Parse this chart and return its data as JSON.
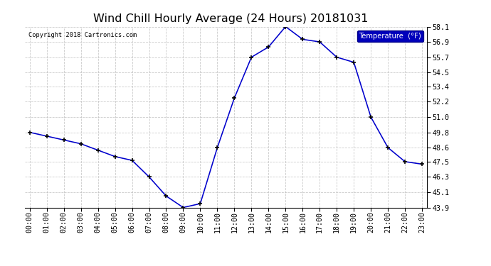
{
  "title": "Wind Chill Hourly Average (24 Hours) 20181031",
  "copyright_text": "Copyright 2018 Cartronics.com",
  "legend_label": "Temperature  (°F)",
  "x_labels": [
    "00:00",
    "01:00",
    "02:00",
    "03:00",
    "04:00",
    "05:00",
    "06:00",
    "07:00",
    "08:00",
    "09:00",
    "10:00",
    "11:00",
    "12:00",
    "13:00",
    "14:00",
    "15:00",
    "16:00",
    "17:00",
    "18:00",
    "19:00",
    "20:00",
    "21:00",
    "22:00",
    "23:00"
  ],
  "hours": [
    0,
    1,
    2,
    3,
    4,
    5,
    6,
    7,
    8,
    9,
    10,
    11,
    12,
    13,
    14,
    15,
    16,
    17,
    18,
    19,
    20,
    21,
    22,
    23
  ],
  "values": [
    49.8,
    49.5,
    49.2,
    48.9,
    48.4,
    47.9,
    47.6,
    46.3,
    44.8,
    43.9,
    44.2,
    48.6,
    52.5,
    55.7,
    56.5,
    58.1,
    57.1,
    56.9,
    55.7,
    55.3,
    51.0,
    48.6,
    47.5,
    47.3
  ],
  "line_color": "#0000cc",
  "marker_color": "#000000",
  "background_color": "#ffffff",
  "plot_bg_color": "#ffffff",
  "grid_color": "#bbbbbb",
  "ylim_min": 43.9,
  "ylim_max": 58.1,
  "yticks": [
    43.9,
    45.1,
    46.3,
    47.5,
    48.6,
    49.8,
    51.0,
    52.2,
    53.4,
    54.5,
    55.7,
    56.9,
    58.1
  ],
  "title_fontsize": 12,
  "tick_fontsize": 7.5,
  "legend_bg": "#0000bb",
  "legend_fg": "#ffffff"
}
